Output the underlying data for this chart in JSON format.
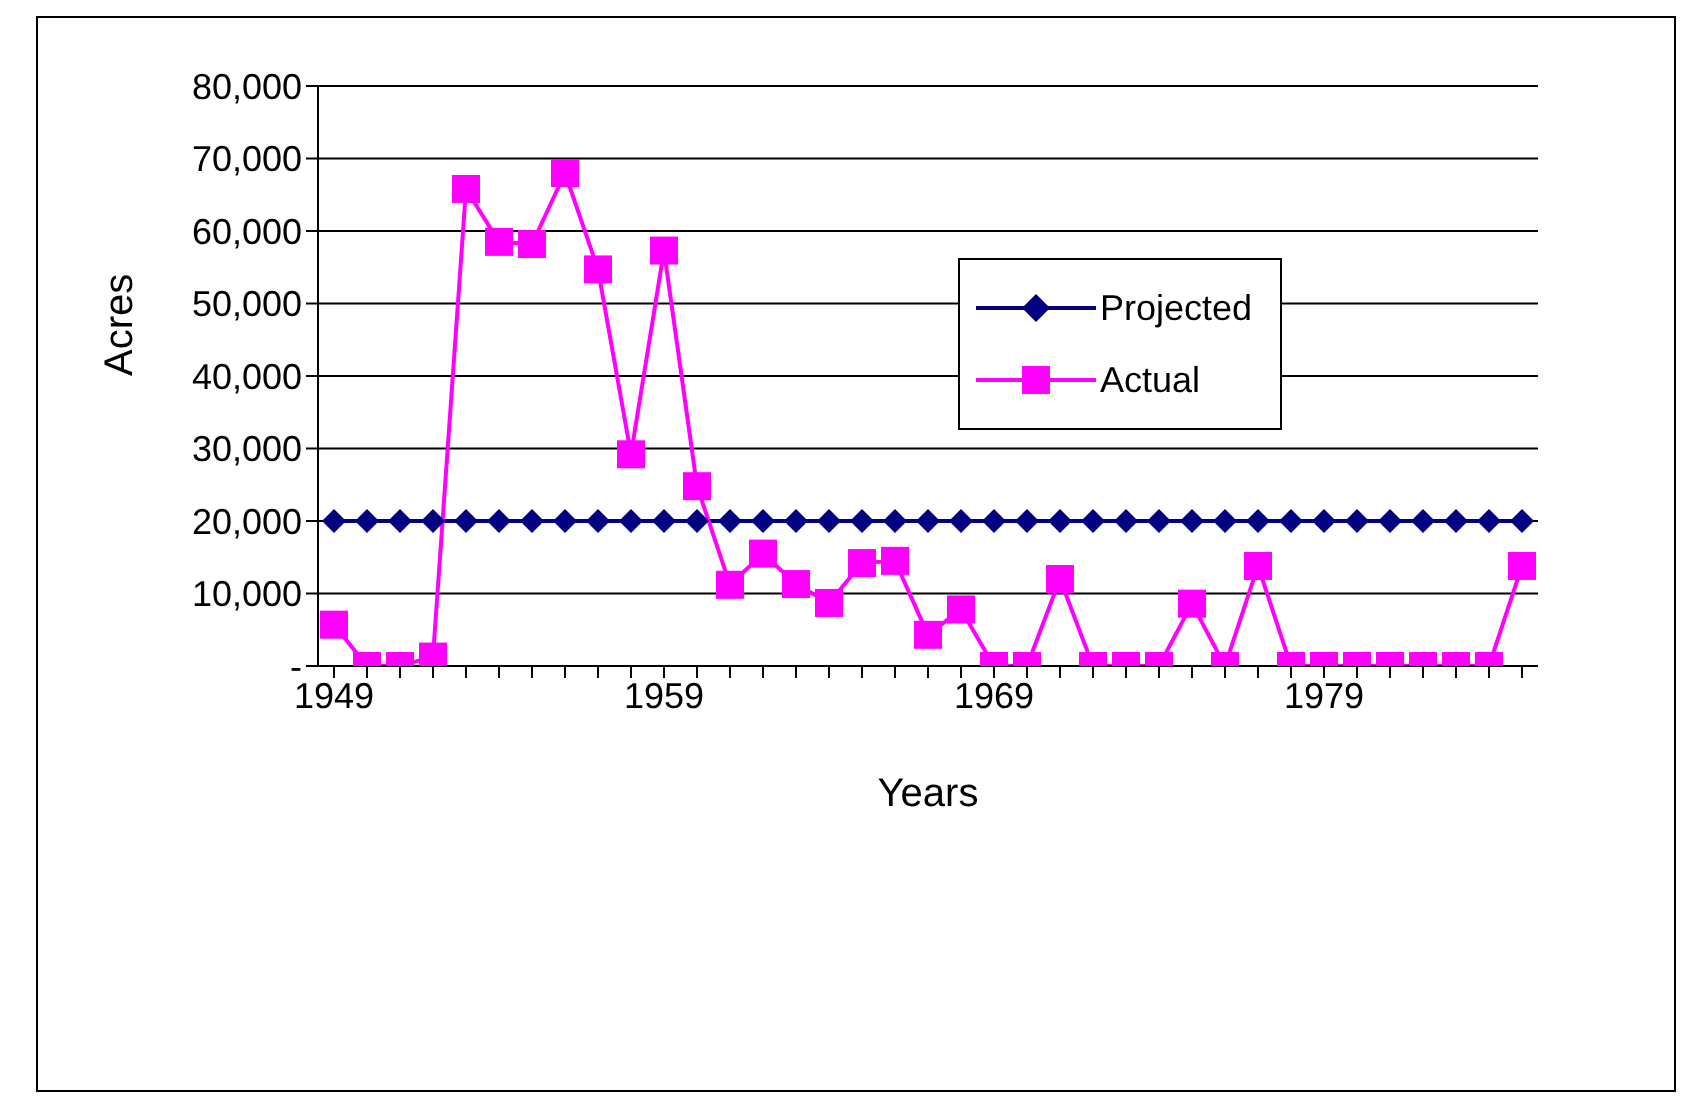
{
  "chart_data": {
    "type": "line",
    "xlabel": "Years",
    "ylabel": "Acres",
    "categories": [
      "1949",
      null,
      null,
      null,
      null,
      null,
      null,
      null,
      null,
      null,
      "1959",
      null,
      null,
      null,
      null,
      null,
      null,
      null,
      null,
      null,
      "1969",
      null,
      null,
      null,
      null,
      null,
      null,
      null,
      null,
      null,
      "1979",
      null,
      null,
      null,
      null,
      null,
      null
    ],
    "series": [
      {
        "name": "Projected",
        "color": "#000080",
        "marker": "diamond",
        "values": [
          20000,
          20000,
          20000,
          20000,
          20000,
          20000,
          20000,
          20000,
          20000,
          20000,
          20000,
          20000,
          20000,
          20000,
          20000,
          20000,
          20000,
          20000,
          20000,
          20000,
          20000,
          20000,
          20000,
          20000,
          20000,
          20000,
          20000,
          20000,
          20000,
          20000,
          20000,
          20000,
          20000,
          20000,
          20000,
          20000,
          20000
        ]
      },
      {
        "name": "Actual",
        "color": "#ff00ff",
        "marker": "square",
        "values": [
          5700,
          0,
          0,
          1300,
          65800,
          58500,
          58200,
          68000,
          54700,
          29200,
          57300,
          24800,
          11200,
          15500,
          11300,
          8700,
          14200,
          14500,
          4300,
          7800,
          0,
          0,
          12000,
          0,
          0,
          0,
          8600,
          0,
          13800,
          0,
          0,
          0,
          0,
          0,
          0,
          0,
          13800
        ]
      }
    ],
    "ylim": [
      0,
      80000
    ],
    "yticks": [
      {
        "value": 0,
        "label": "-"
      },
      {
        "value": 10000,
        "label": "10,000"
      },
      {
        "value": 20000,
        "label": "20,000"
      },
      {
        "value": 30000,
        "label": "30,000"
      },
      {
        "value": 40000,
        "label": "40,000"
      },
      {
        "value": 50000,
        "label": "50,000"
      },
      {
        "value": 60000,
        "label": "60,000"
      },
      {
        "value": 70000,
        "label": "70,000"
      },
      {
        "value": 80000,
        "label": "80,000"
      }
    ],
    "grid": "y",
    "legend": "top right",
    "line_style": "solid"
  }
}
